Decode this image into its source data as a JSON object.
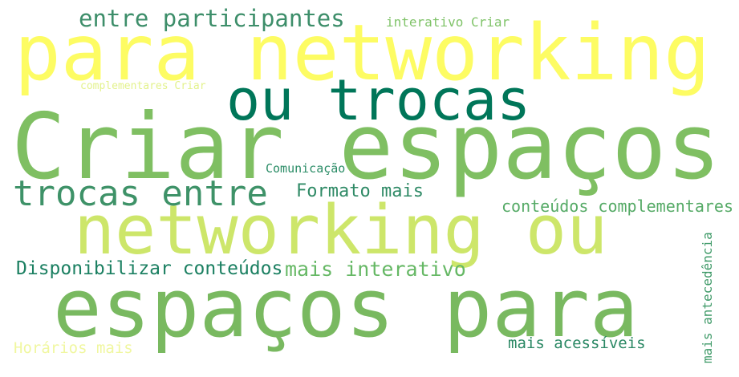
{
  "words": [
    {
      "text": "para networking",
      "color": "#fdfc63"
    },
    {
      "text": "entre participantes",
      "color": "#3d8e6a"
    },
    {
      "text": "interativo Criar",
      "color": "#7fc368"
    },
    {
      "text": "ou trocas",
      "color": "#007659"
    },
    {
      "text": "complementares Criar",
      "color": "#e3f28c"
    },
    {
      "text": "Criar espaços",
      "color": "#7fbf62"
    },
    {
      "text": "Comunicação",
      "color": "#2a8c66"
    },
    {
      "text": "trocas entre",
      "color": "#3e9268"
    },
    {
      "text": "Formato mais",
      "color": "#2f8a66"
    },
    {
      "text": "conteúdos complementares",
      "color": "#55aa66"
    },
    {
      "text": "networking ou",
      "color": "#cde66a"
    },
    {
      "text": "Disponibilizar conteúdos",
      "color": "#1c8062"
    },
    {
      "text": "mais interativo",
      "color": "#66b865"
    },
    {
      "text": "espaços para",
      "color": "#79b960"
    },
    {
      "text": "Horários mais",
      "color": "#f0f7a0"
    },
    {
      "text": "mais acessíveis",
      "color": "#2a8864"
    },
    {
      "text": "mais antecedência",
      "color": "#3f9a68"
    }
  ]
}
